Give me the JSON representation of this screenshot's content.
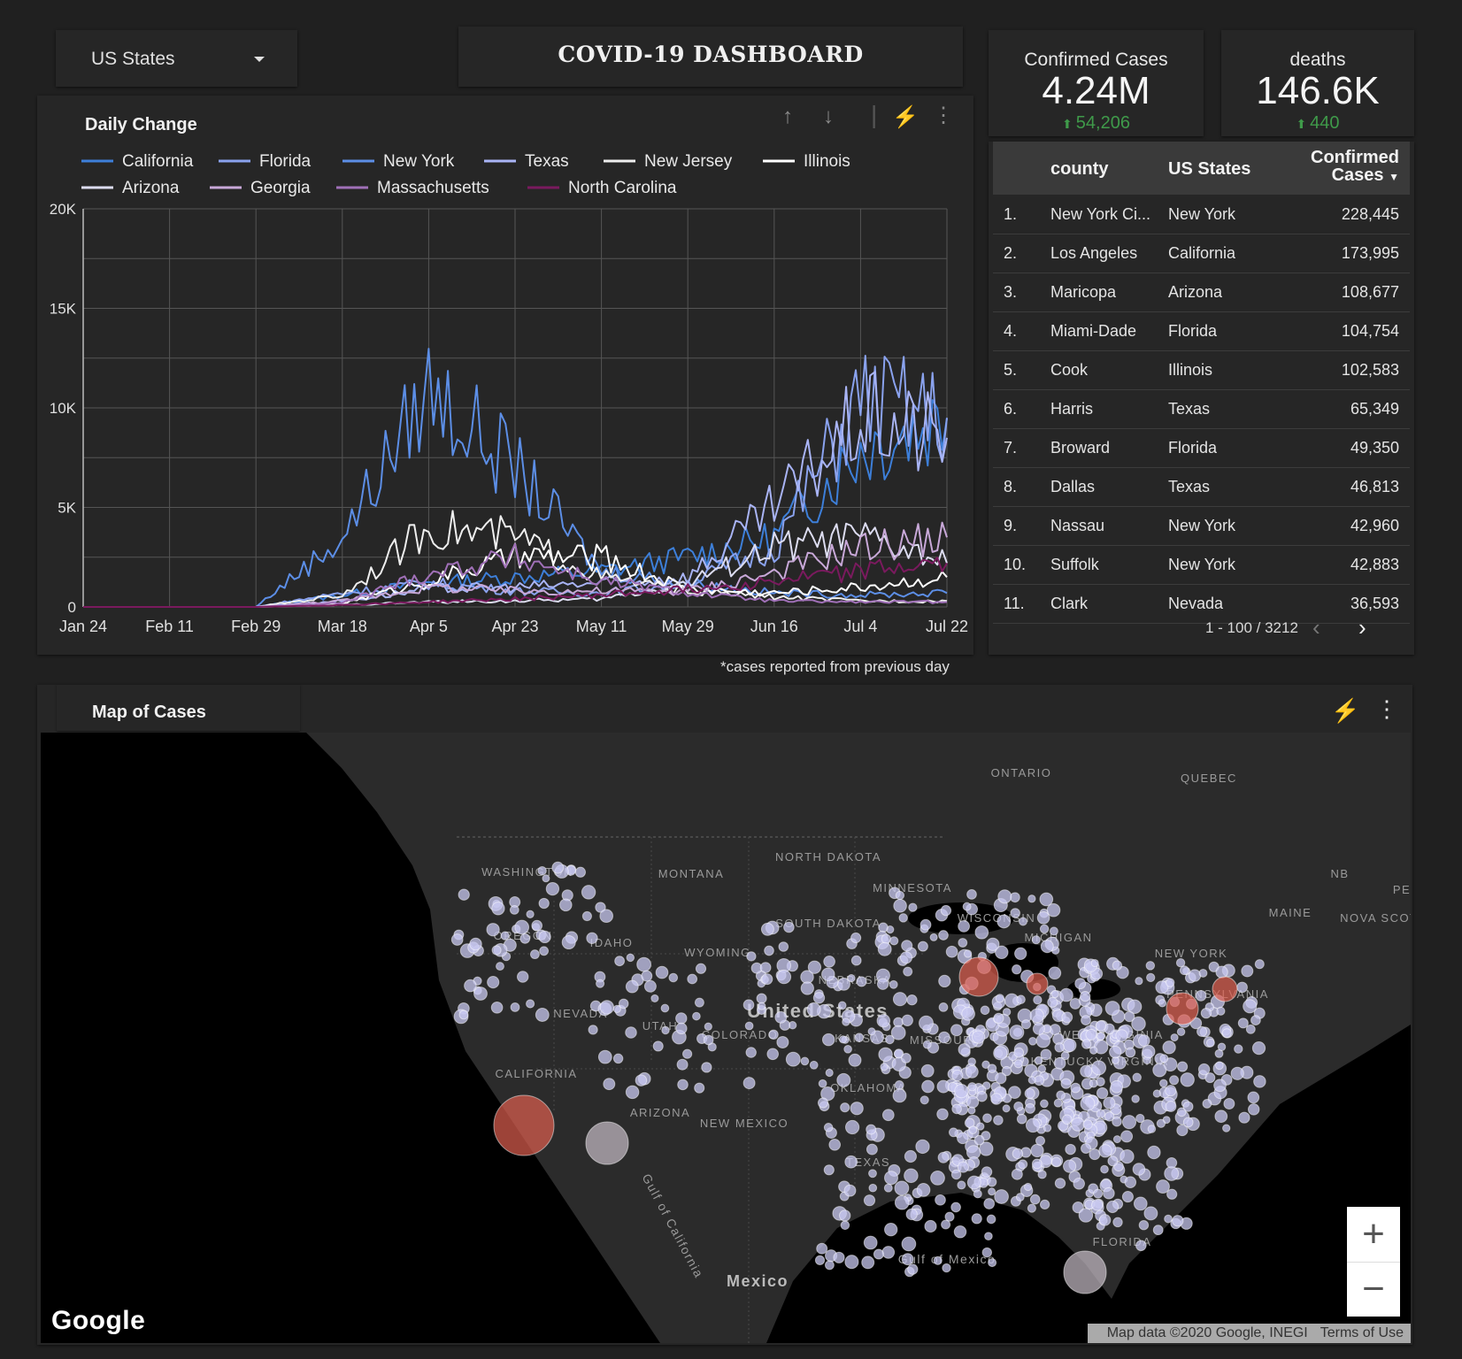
{
  "filter": {
    "label": "US States"
  },
  "title": "COVID-19 DASHBOARD",
  "scorecards": [
    {
      "label": "Confirmed Cases",
      "value": "4.24M",
      "delta": "54,206"
    },
    {
      "label": "deaths",
      "value": "146.6K",
      "delta": "440"
    }
  ],
  "colors": {
    "delta_up": "#3f9a4a",
    "hot_bubble": "#e06050",
    "bubble": "#b8b8e0"
  },
  "chart": {
    "title": "Daily Change",
    "note": "*cases reported from previous day",
    "tools": [
      "arrow-up-icon",
      "arrow-down-icon",
      "lightning-icon",
      "more-vert-icon"
    ]
  },
  "chart_data": {
    "type": "line",
    "title": "Daily Change",
    "xlabel": "",
    "ylabel": "",
    "ylim": [
      0,
      20000
    ],
    "y_ticks": [
      "0",
      "5K",
      "10K",
      "15K",
      "20K"
    ],
    "categories": [
      "Jan 24",
      "Feb 11",
      "Feb 29",
      "Mar 18",
      "Apr 5",
      "Apr 23",
      "May 11",
      "May 29",
      "Jun 16",
      "Jul 4",
      "Jul 22"
    ],
    "grid": true,
    "legend_position": "top",
    "series": [
      {
        "name": "California",
        "color": "#3d7fd9",
        "values": [
          0,
          0,
          0,
          600,
          1200,
          1500,
          1800,
          2500,
          3500,
          8000,
          9500
        ]
      },
      {
        "name": "Florida",
        "color": "#8aa2ee",
        "values": [
          0,
          0,
          0,
          700,
          1200,
          800,
          700,
          1200,
          3000,
          10500,
          9500
        ]
      },
      {
        "name": "New York",
        "color": "#5c8ee6",
        "values": [
          0,
          0,
          0,
          3500,
          11000,
          7000,
          1800,
          1200,
          700,
          600,
          700
        ]
      },
      {
        "name": "Texas",
        "color": "#a9b4f5",
        "values": [
          0,
          0,
          0,
          300,
          900,
          1000,
          1200,
          1500,
          5000,
          9500,
          8500
        ]
      },
      {
        "name": "New Jersey",
        "color": "#eeeeee",
        "values": [
          0,
          0,
          0,
          600,
          4000,
          3500,
          1500,
          800,
          500,
          300,
          300
        ]
      },
      {
        "name": "Illinois",
        "color": "#ffffff",
        "values": [
          0,
          0,
          0,
          200,
          1300,
          2500,
          2500,
          900,
          700,
          1000,
          1500
        ]
      },
      {
        "name": "Arizona",
        "color": "#dcdcf0",
        "values": [
          0,
          0,
          0,
          100,
          250,
          300,
          400,
          1200,
          3000,
          3500,
          2200
        ]
      },
      {
        "name": "Georgia",
        "color": "#c8a8d8",
        "values": [
          0,
          0,
          0,
          300,
          1000,
          800,
          800,
          800,
          1700,
          3000,
          3500
        ]
      },
      {
        "name": "Massachusetts",
        "color": "#a070b8",
        "values": [
          0,
          0,
          0,
          200,
          1700,
          2500,
          1300,
          700,
          300,
          250,
          250
        ]
      },
      {
        "name": "North Carolina",
        "color": "#7a1a5e",
        "values": [
          0,
          0,
          0,
          100,
          250,
          400,
          600,
          900,
          1300,
          1800,
          2200
        ]
      }
    ]
  },
  "table": {
    "headers": [
      "county",
      "US States",
      "Confirmed Cases"
    ],
    "rows": [
      [
        "1.",
        "New York Ci...",
        "New York",
        "228,445"
      ],
      [
        "2.",
        "Los Angeles",
        "California",
        "173,995"
      ],
      [
        "3.",
        "Maricopa",
        "Arizona",
        "108,677"
      ],
      [
        "4.",
        "Miami-Dade",
        "Florida",
        "104,754"
      ],
      [
        "5.",
        "Cook",
        "Illinois",
        "102,583"
      ],
      [
        "6.",
        "Harris",
        "Texas",
        "65,349"
      ],
      [
        "7.",
        "Broward",
        "Florida",
        "49,350"
      ],
      [
        "8.",
        "Dallas",
        "Texas",
        "46,813"
      ],
      [
        "9.",
        "Nassau",
        "New York",
        "42,960"
      ],
      [
        "10.",
        "Suffolk",
        "New York",
        "42,883"
      ],
      [
        "11.",
        "Clark",
        "Nevada",
        "36,593"
      ]
    ],
    "pager": "1 - 100 / 3212"
  },
  "map": {
    "title": "Map of Cases",
    "labels": [
      "ONTARIO",
      "QUEBEC",
      "WASHINGTON",
      "MONTANA",
      "NORTH DAKOTA",
      "MINNESOTA",
      "SOUTH DAKOTA",
      "OREGON",
      "IDAHO",
      "WYOMING",
      "WISCONSIN",
      "MICHIGAN",
      "NEW YORK",
      "NB",
      "PE",
      "MAINE",
      "NOVA SCOTIA",
      "NEBRASKA",
      "NEVADA",
      "UTAH",
      "United States",
      "COLORADO",
      "KANSAS",
      "MISSOURI",
      "PENNSYLVANIA",
      "WEST VIRGINIA",
      "KENTUCKY",
      "VIRGINIA",
      "CALIFORNIA",
      "OKLAHOMA",
      "ARIZONA",
      "NEW MEXICO",
      "TEXAS",
      "Gulf of California",
      "Gulf of Mexico",
      "Mexico",
      "FLORIDA"
    ],
    "logo": "Google",
    "attribution": "Map data ©2020 Google, INEGI",
    "terms": "Terms of Use",
    "zoom_in": "+",
    "zoom_out": "−"
  }
}
